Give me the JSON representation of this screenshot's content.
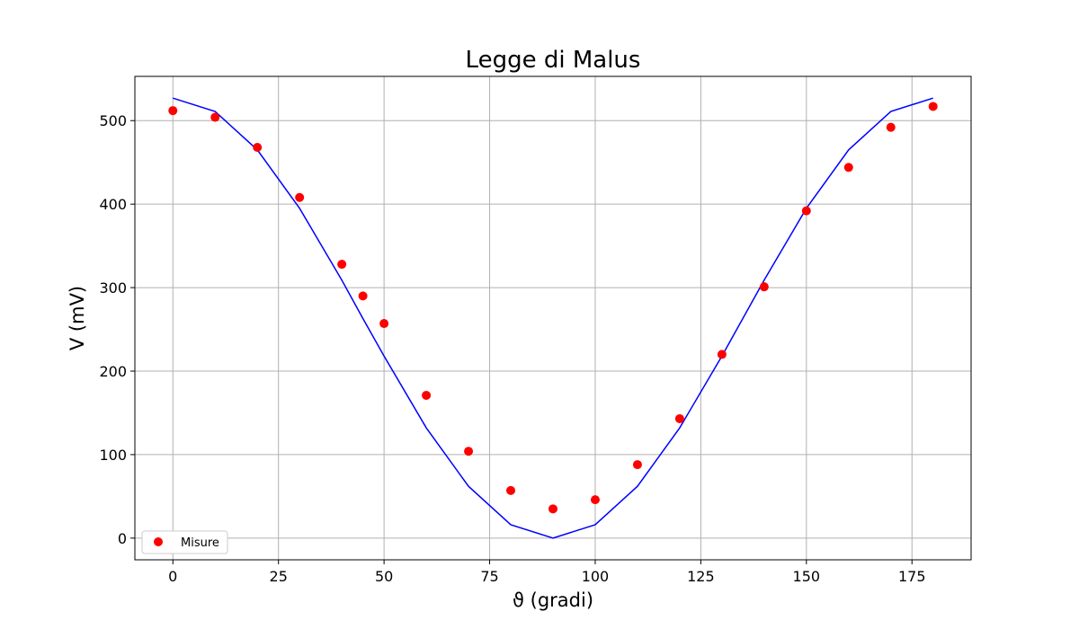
{
  "chart_data": {
    "type": "scatter",
    "title": "Legge di Malus",
    "xlabel": "ϑ (gradi)",
    "ylabel": "V (mV)",
    "xlim": [
      -9,
      189
    ],
    "ylim": [
      -26,
      553
    ],
    "xticks": [
      0,
      25,
      50,
      75,
      100,
      125,
      150,
      175
    ],
    "yticks": [
      0,
      100,
      200,
      300,
      400,
      500
    ],
    "grid": true,
    "legend": {
      "location": "lower-left",
      "entries": [
        "Misure"
      ]
    },
    "series": [
      {
        "name": "Misure",
        "kind": "scatter",
        "color": "#ff0000",
        "x": [
          0,
          10,
          20,
          30,
          40,
          45,
          50,
          60,
          70,
          80,
          90,
          100,
          110,
          120,
          130,
          140,
          150,
          160,
          170,
          180
        ],
        "y": [
          512,
          504,
          468,
          408,
          328,
          290,
          257,
          171,
          104,
          57,
          35,
          46,
          88,
          143,
          220,
          301,
          392,
          444,
          492,
          517
        ]
      },
      {
        "kind": "line",
        "color": "#0000ff",
        "x": [
          0,
          10,
          20,
          30,
          40,
          45,
          50,
          60,
          70,
          80,
          90,
          100,
          110,
          120,
          130,
          140,
          150,
          160,
          170,
          180
        ],
        "y": [
          527,
          511,
          465,
          395,
          309,
          263,
          218,
          132,
          62,
          16,
          0,
          16,
          62,
          132,
          218,
          309,
          395,
          465,
          511,
          527
        ]
      }
    ]
  }
}
